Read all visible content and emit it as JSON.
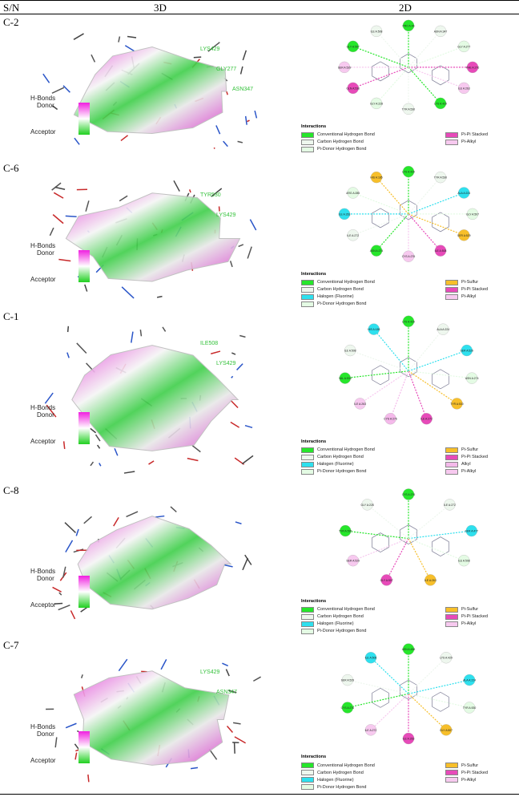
{
  "header": {
    "sn": "S/N",
    "col3d": "3D",
    "col2d": "2D"
  },
  "colors": {
    "donor": "#f020e0",
    "acceptor": "#20d020",
    "conventional": "#26e62b",
    "carbon": "#eef7ee",
    "halogen": "#2ee0ee",
    "pidonor": "#e4fbe4",
    "pisulfur": "#f7bf2a",
    "pipistacked": "#e74ab9",
    "pialkyl": "#f7c9ef",
    "alkyl": "#f4b9ea"
  },
  "hbonds": {
    "title": "H-Bonds",
    "donor": "Donor",
    "acceptor": "Acceptor"
  },
  "rows": [
    {
      "label": "C-2",
      "labels3d": [
        "LYS429",
        "GLY277",
        "ASN347"
      ],
      "residues": [
        "PRO A:46",
        "ASN A:347",
        "GLY A:277",
        "PHE A:276",
        "ILE A:263",
        "LYS A:429",
        "TYR A:530",
        "GLY A:228",
        "GLN A:536",
        "SER A:529",
        "GLY A:507",
        "ILE A:508"
      ],
      "interactions_title": "Interactions",
      "interactions": [
        {
          "label": "Conventional Hydrogen Bond",
          "color": "conventional"
        },
        {
          "label": "Carbon Hydrogen Bond",
          "color": "carbon"
        },
        {
          "label": "Pi-Donor Hydrogen Bond",
          "color": "pidonor"
        },
        {
          "label": "Pi-Pi Stacked",
          "color": "pipistacked"
        },
        {
          "label": "Pi-Alkyl",
          "color": "pialkyl"
        }
      ]
    },
    {
      "label": "C-6",
      "labels3d": [
        "TYR530",
        "LYS429"
      ],
      "residues": [
        "LYS A:429",
        "TYR A:530",
        "ALA A:224",
        "GLY A:507",
        "SER A:529",
        "ILE A:508",
        "CYS A:276",
        "ASN A:274",
        "ILE A:272",
        "ILE A:263",
        "ARG A:285",
        "HIS A:185"
      ],
      "interactions_title": "Interactions",
      "interactions": [
        {
          "label": "Conventional Hydrogen Bond",
          "color": "conventional"
        },
        {
          "label": "Carbon Hydrogen Bond",
          "color": "carbon"
        },
        {
          "label": "Halogen (Fluorine)",
          "color": "halogen"
        },
        {
          "label": "Pi-Donor Hydrogen Bond",
          "color": "pidonor"
        },
        {
          "label": "Pi-Sulfur",
          "color": "pisulfur"
        },
        {
          "label": "Pi-Pi Stacked",
          "color": "pipistacked"
        },
        {
          "label": "Pi-Alkyl",
          "color": "pialkyl"
        }
      ]
    },
    {
      "label": "C-1",
      "labels3d": [
        "ILE508",
        "LYS429"
      ],
      "residues": [
        "LYS A:429",
        "ALA A:224",
        "SER A:529",
        "ASN A:274",
        "TYR A:530",
        "ILE A:272",
        "CYS A:276",
        "ILE A:263",
        "VAL A:533",
        "ILE A:508",
        "HIS A:185"
      ],
      "interactions_title": "Interactions",
      "interactions": [
        {
          "label": "Conventional Hydrogen Bond",
          "color": "conventional"
        },
        {
          "label": "Carbon Hydrogen Bond",
          "color": "carbon"
        },
        {
          "label": "Halogen (Fluorine)",
          "color": "halogen"
        },
        {
          "label": "Pi-Donor Hydrogen Bond",
          "color": "pidonor"
        },
        {
          "label": "Pi-Sulfur",
          "color": "pisulfur"
        },
        {
          "label": "Pi-Pi Stacked",
          "color": "pipistacked"
        },
        {
          "label": "Alkyl",
          "color": "alkyl"
        },
        {
          "label": "Pi-Alkyl",
          "color": "pialkyl"
        }
      ]
    },
    {
      "label": "C-8",
      "labels3d": [],
      "residues": [
        "CYS A:276",
        "ILE A:272",
        "SER A:477",
        "ILE A:508",
        "ILE A:263",
        "GLY A:507",
        "SER A:529",
        "TYR A:530",
        "GLY A:228"
      ],
      "interactions_title": "Interactions",
      "interactions": [
        {
          "label": "Conventional Hydrogen Bond",
          "color": "conventional"
        },
        {
          "label": "Carbon Hydrogen Bond",
          "color": "carbon"
        },
        {
          "label": "Halogen (Fluorine)",
          "color": "halogen"
        },
        {
          "label": "Pi-Donor Hydrogen Bond",
          "color": "pidonor"
        },
        {
          "label": "Pi-Sulfur",
          "color": "pisulfur"
        },
        {
          "label": "Pi-Pi Stacked",
          "color": "pipistacked"
        },
        {
          "label": "Pi-Alkyl",
          "color": "pialkyl"
        }
      ]
    },
    {
      "label": "C-7",
      "labels3d": [
        "LYS429",
        "ASN347"
      ],
      "residues": [
        "ASN A:458",
        "LYS A:429",
        "ALA A:224",
        "TYR A:530",
        "GLY A:507",
        "ILE A:263",
        "ILE A:272",
        "CYS A:276",
        "SER A:529",
        "ILE A:508"
      ],
      "interactions_title": "Interactions",
      "interactions": [
        {
          "label": "Conventional Hydrogen Bond",
          "color": "conventional"
        },
        {
          "label": "Carbon Hydrogen Bond",
          "color": "carbon"
        },
        {
          "label": "Halogen (Fluorine)",
          "color": "halogen"
        },
        {
          "label": "Pi-Donor Hydrogen Bond",
          "color": "pidonor"
        },
        {
          "label": "Pi-Sulfur",
          "color": "pisulfur"
        },
        {
          "label": "Pi-Pi Stacked",
          "color": "pipistacked"
        },
        {
          "label": "Pi-Alkyl",
          "color": "pialkyl"
        }
      ]
    }
  ]
}
